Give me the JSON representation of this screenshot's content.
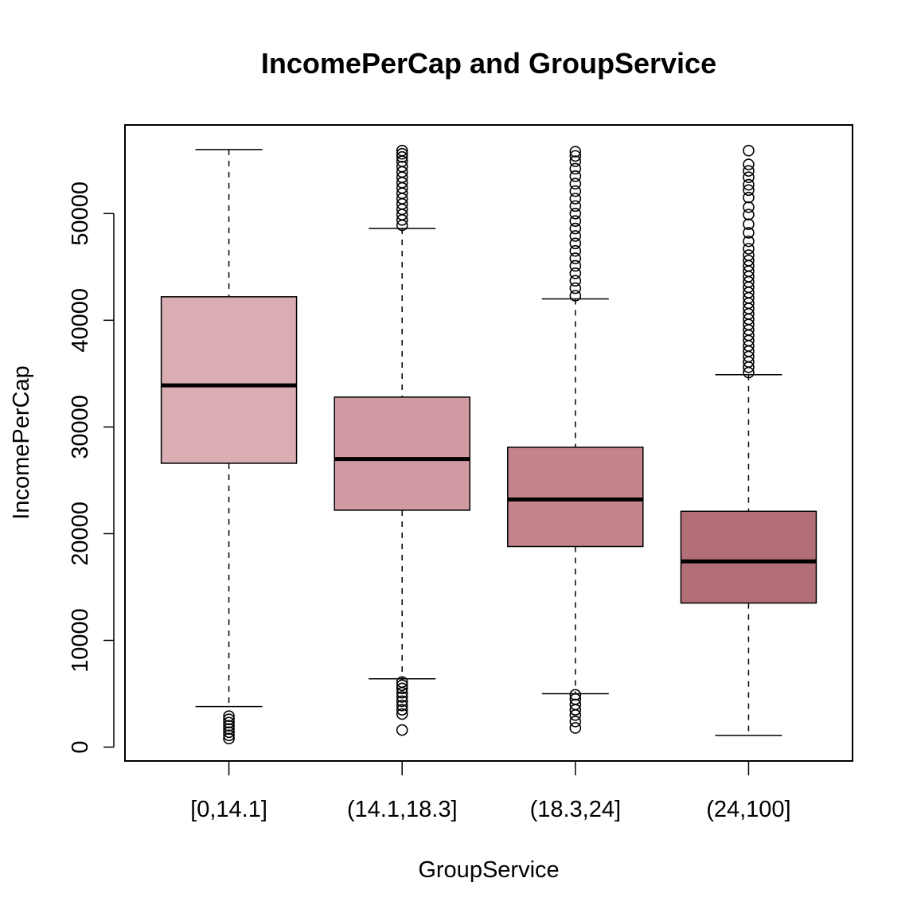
{
  "chart_data": {
    "type": "boxplot",
    "title": "IncomePerCap and GroupService",
    "xlabel": "GroupService",
    "ylabel": "IncomePerCap",
    "ylim": [
      -1300,
      58300
    ],
    "yticks": [
      0,
      10000,
      20000,
      30000,
      40000,
      50000
    ],
    "yticklabels": [
      "0",
      "10000",
      "20000",
      "30000",
      "40000",
      "50000"
    ],
    "grid": false,
    "legend": "none",
    "categories": [
      "[0,14.1]",
      "(14.1,18.3]",
      "(18.3,24]",
      "(24,100]"
    ],
    "boxes": [
      {
        "category": "[0,14.1]",
        "whisker_low": 3800,
        "q1": 26600,
        "median": 33900,
        "q3": 42200,
        "whisker_high": 56000,
        "outliers": [
          800,
          1100,
          1400,
          1700,
          2000,
          2300,
          2600,
          2900
        ],
        "color": "#d9adb2"
      },
      {
        "category": "(14.1,18.3]",
        "whisker_low": 6400,
        "q1": 22200,
        "median": 27000,
        "q3": 32800,
        "whisker_high": 48600,
        "outliers": [
          1600,
          3100,
          3500,
          3900,
          4300,
          4700,
          5100,
          5500,
          5800,
          6100,
          48900,
          49400,
          49900,
          50400,
          50900,
          51400,
          51900,
          52400,
          52900,
          53400,
          53900,
          54400,
          54900,
          55300,
          55600,
          55900
        ],
        "color": "#cf9aa1"
      },
      {
        "category": "(18.3,24]",
        "whisker_low": 5000,
        "q1": 18800,
        "median": 23200,
        "q3": 28100,
        "whisker_high": 42000,
        "outliers": [
          1800,
          2400,
          3000,
          3500,
          4000,
          4500,
          4900,
          42300,
          43000,
          43700,
          44400,
          45100,
          45800,
          46500,
          47200,
          47900,
          48600,
          49300,
          50000,
          50700,
          51400,
          52100,
          52800,
          53500,
          54200,
          54900,
          55400,
          55800
        ],
        "color": "#c5848b"
      },
      {
        "category": "(24,100]",
        "whisker_low": 1100,
        "q1": 13500,
        "median": 17400,
        "q3": 22100,
        "whisker_high": 34900,
        "outliers": [
          35100,
          35600,
          36100,
          36600,
          37100,
          37600,
          38100,
          38600,
          39100,
          39600,
          40100,
          40600,
          41100,
          41600,
          42100,
          42600,
          43100,
          43600,
          44100,
          44600,
          45100,
          45600,
          46100,
          46700,
          47400,
          48200,
          49000,
          49900,
          50600,
          51500,
          52200,
          52700,
          53400,
          54000,
          54600,
          55900
        ],
        "color": "#b26f77"
      }
    ]
  }
}
